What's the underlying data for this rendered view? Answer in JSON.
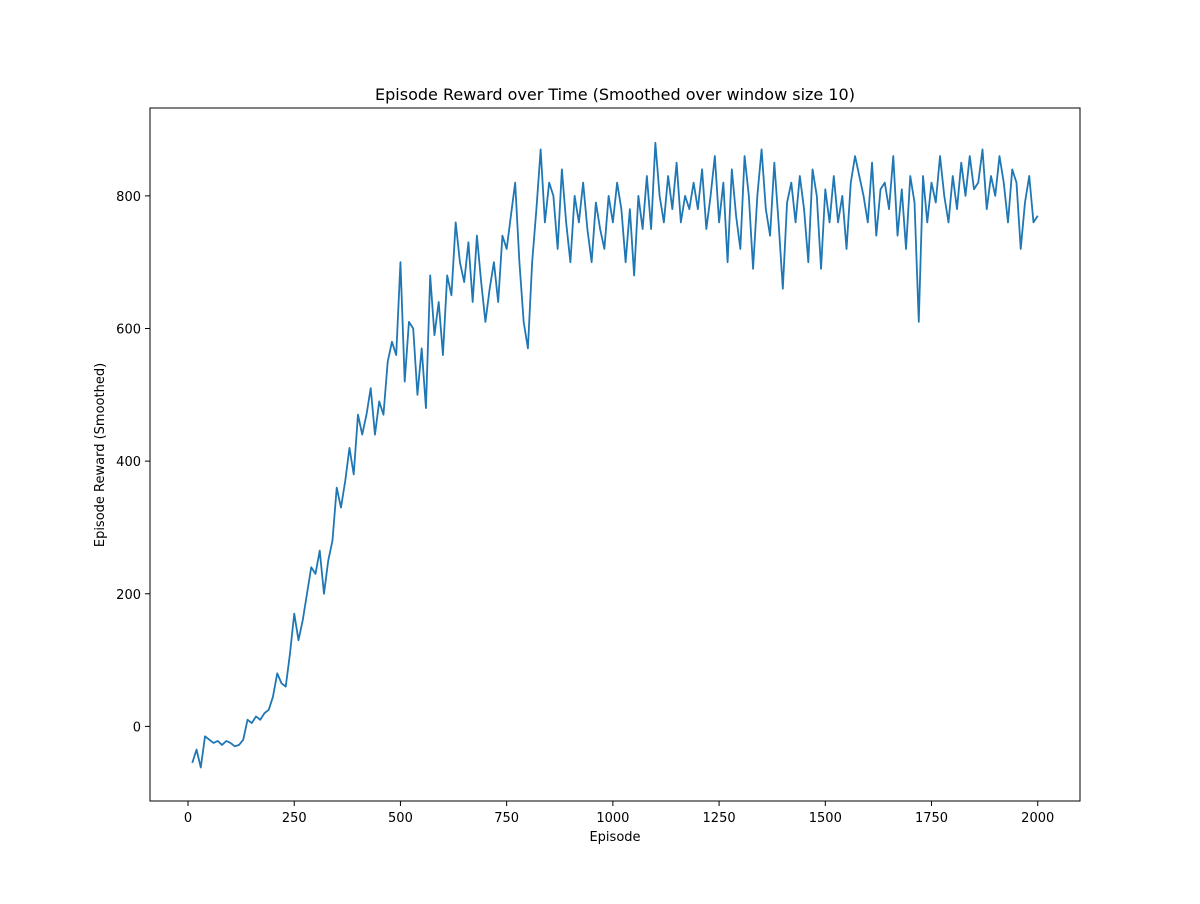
{
  "chart_data": {
    "type": "line",
    "title": "Episode Reward over Time (Smoothed over window size 10)",
    "x_label": "Episode",
    "y_label": "Episode Reward (Smoothed)",
    "xlim": [
      -89.5,
      2099.5
    ],
    "ylim": [
      -112.5,
      932.5
    ],
    "xticks": [
      0,
      250,
      500,
      750,
      1000,
      1250,
      1500,
      1750,
      2000
    ],
    "yticks": [
      0,
      200,
      400,
      600,
      800
    ],
    "grid": false,
    "series": [
      {
        "color": "#1f77b4",
        "x": [
          10,
          20,
          30,
          40,
          50,
          60,
          70,
          80,
          90,
          100,
          110,
          120,
          130,
          140,
          150,
          160,
          170,
          180,
          190,
          200,
          210,
          220,
          230,
          240,
          250,
          260,
          270,
          280,
          290,
          300,
          310,
          320,
          330,
          340,
          350,
          360,
          370,
          380,
          390,
          400,
          410,
          420,
          430,
          440,
          450,
          460,
          470,
          480,
          490,
          500,
          510,
          520,
          530,
          540,
          550,
          560,
          570,
          580,
          590,
          600,
          610,
          620,
          630,
          640,
          650,
          660,
          670,
          680,
          690,
          700,
          710,
          720,
          730,
          740,
          750,
          760,
          770,
          780,
          790,
          800,
          810,
          820,
          830,
          840,
          850,
          860,
          870,
          880,
          890,
          900,
          910,
          920,
          930,
          940,
          950,
          960,
          970,
          980,
          990,
          1000,
          1010,
          1020,
          1030,
          1040,
          1050,
          1060,
          1070,
          1080,
          1090,
          1100,
          1110,
          1120,
          1130,
          1140,
          1150,
          1160,
          1170,
          1180,
          1190,
          1200,
          1210,
          1220,
          1230,
          1240,
          1250,
          1260,
          1270,
          1280,
          1290,
          1300,
          1310,
          1320,
          1330,
          1340,
          1350,
          1360,
          1370,
          1380,
          1390,
          1400,
          1410,
          1420,
          1430,
          1440,
          1450,
          1460,
          1470,
          1480,
          1490,
          1500,
          1510,
          1520,
          1530,
          1540,
          1550,
          1560,
          1570,
          1580,
          1590,
          1600,
          1610,
          1620,
          1630,
          1640,
          1650,
          1660,
          1670,
          1680,
          1690,
          1700,
          1710,
          1720,
          1730,
          1740,
          1750,
          1760,
          1770,
          1780,
          1790,
          1800,
          1810,
          1820,
          1830,
          1840,
          1850,
          1860,
          1870,
          1880,
          1890,
          1900,
          1910,
          1920,
          1930,
          1940,
          1950,
          1960,
          1970,
          1980,
          1990,
          2000
        ],
        "values": [
          -55,
          -35,
          -62,
          -15,
          -20,
          -25,
          -22,
          -28,
          -22,
          -25,
          -30,
          -28,
          -20,
          10,
          5,
          15,
          10,
          20,
          25,
          45,
          80,
          65,
          60,
          110,
          170,
          130,
          160,
          200,
          240,
          230,
          265,
          200,
          250,
          280,
          360,
          330,
          370,
          420,
          380,
          470,
          440,
          470,
          510,
          440,
          490,
          470,
          550,
          580,
          560,
          700,
          520,
          610,
          600,
          500,
          570,
          480,
          680,
          590,
          640,
          560,
          680,
          650,
          760,
          700,
          670,
          730,
          640,
          740,
          670,
          610,
          660,
          700,
          640,
          740,
          720,
          770,
          820,
          700,
          610,
          570,
          700,
          780,
          870,
          760,
          820,
          800,
          720,
          840,
          760,
          700,
          800,
          760,
          820,
          750,
          700,
          790,
          750,
          720,
          800,
          760,
          820,
          780,
          700,
          780,
          680,
          800,
          750,
          830,
          750,
          880,
          800,
          760,
          830,
          780,
          850,
          760,
          800,
          780,
          820,
          780,
          840,
          750,
          800,
          860,
          760,
          820,
          700,
          840,
          770,
          720,
          860,
          800,
          690,
          800,
          870,
          780,
          740,
          850,
          760,
          660,
          790,
          820,
          760,
          830,
          780,
          700,
          840,
          800,
          690,
          810,
          760,
          830,
          760,
          800,
          720,
          820,
          860,
          830,
          800,
          760,
          850,
          740,
          810,
          820,
          780,
          860,
          740,
          810,
          720,
          830,
          790,
          610,
          830,
          760,
          820,
          790,
          860,
          800,
          760,
          830,
          780,
          850,
          800,
          860,
          810,
          820,
          870,
          780,
          830,
          800,
          860,
          820,
          760,
          840,
          820,
          720,
          790,
          830,
          760,
          770
        ]
      }
    ]
  }
}
